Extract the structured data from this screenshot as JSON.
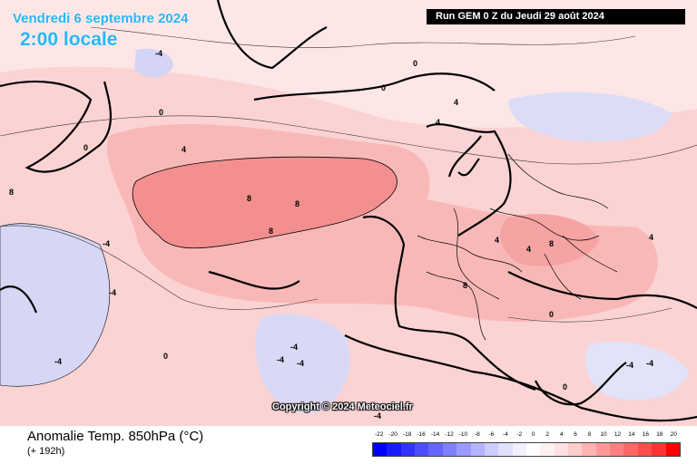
{
  "header": {
    "valid_date": "Vendredi 6 septembre 2024",
    "valid_time": "2:00 locale",
    "run_info": "Run GEM 0 Z du Jeudi 29 août 2024"
  },
  "map": {
    "copyright": "Copyright © 2024 Meteociel.fr",
    "contour_labels": {
      "plus_four": "4",
      "plus_eight": "8",
      "zero": "0",
      "minus_four": "-4"
    }
  },
  "footer": {
    "variable_title": "Anomalie Temp. 850hPa (°C)",
    "lead_time": "(+ 192h)"
  },
  "legend": {
    "tick_labels": [
      "-22",
      "-20",
      "-18",
      "-16",
      "-14",
      "-12",
      "-10",
      "-8",
      "-6",
      "-4",
      "-2",
      "0",
      "2",
      "4",
      "6",
      "8",
      "10",
      "12",
      "14",
      "16",
      "18",
      "20"
    ],
    "colors": [
      "#0000ff",
      "#1a1aff",
      "#3333ff",
      "#4d4dff",
      "#6666ff",
      "#7f7fff",
      "#9999ff",
      "#b3b3ff",
      "#ccccff",
      "#e0e0ff",
      "#f0f0ff",
      "#ffffff",
      "#fff0f0",
      "#ffe0e0",
      "#ffcccc",
      "#ffb3b3",
      "#ff9999",
      "#ff7f7f",
      "#ff6666",
      "#ff4d4d",
      "#ff3333",
      "#ff0000"
    ]
  }
}
